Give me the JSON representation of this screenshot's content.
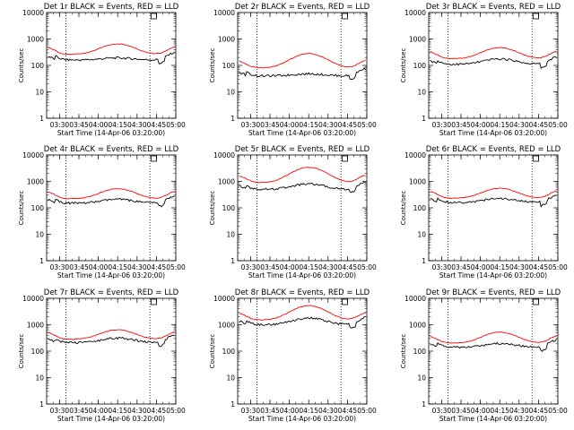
{
  "chart_data": [
    {
      "type": "line",
      "title": "Det 1r BLACK = Events, RED = LLD",
      "xlabel": "Start Time (14-Apr-06 03:20:00)",
      "ylabel": "Counts/sec",
      "x_tick_labels": [
        "03:30",
        "03:45",
        "04:00",
        "04:15",
        "04:30",
        "04:45",
        "05:00"
      ],
      "y_tick_labels": [
        "1",
        "10",
        "100",
        "1000",
        "10000"
      ],
      "ylim": [
        1,
        10000
      ],
      "y_scale": "log",
      "dotted_lines": [
        "03:35",
        "04:40"
      ],
      "marker_x": "04:43",
      "series": [
        {
          "name": "Events",
          "color": "#000000",
          "base": "160",
          "amp": 1.2
        },
        {
          "name": "LLD",
          "color": "#ff0000",
          "base": "260",
          "amp": 2.5
        }
      ]
    },
    {
      "type": "line",
      "title": "Det 2r BLACK = Events, RED = LLD",
      "xlabel": "Start Time (14-Apr-06 03:20:00)",
      "ylabel": "Counts/sec",
      "x_tick_labels": [
        "03:30",
        "03:45",
        "04:00",
        "04:15",
        "04:30",
        "04:45",
        "05:00"
      ],
      "y_tick_labels": [
        "1",
        "10",
        "100",
        "1000",
        "10000"
      ],
      "ylim": [
        1,
        10000
      ],
      "y_scale": "log",
      "dotted_lines": [
        "03:35",
        "04:40"
      ],
      "marker_x": "04:43",
      "series": [
        {
          "name": "Events",
          "color": "#000000",
          "base": "40",
          "amp": 1.2
        },
        {
          "name": "LLD",
          "color": "#ff0000",
          "base": "80",
          "amp": 3.5
        }
      ]
    },
    {
      "type": "line",
      "title": "Det 3r BLACK = Events, RED = LLD",
      "xlabel": "Start Time (14-Apr-06 03:20:00)",
      "ylabel": "Counts/sec",
      "x_tick_labels": [
        "03:30",
        "03:45",
        "04:00",
        "04:15",
        "04:30",
        "04:45",
        "05:00"
      ],
      "y_tick_labels": [
        "1",
        "10",
        "100",
        "1000",
        "10000"
      ],
      "ylim": [
        1,
        10000
      ],
      "y_scale": "log",
      "dotted_lines": [
        "03:35",
        "04:40"
      ],
      "marker_x": "04:43",
      "series": [
        {
          "name": "Events",
          "color": "#000000",
          "base": "110",
          "amp": 1.6
        },
        {
          "name": "LLD",
          "color": "#ff0000",
          "base": "180",
          "amp": 2.6
        }
      ]
    },
    {
      "type": "line",
      "title": "Det 4r BLACK = Events, RED = LLD",
      "xlabel": "Start Time (14-Apr-06 03:20:00)",
      "ylabel": "Counts/sec",
      "x_tick_labels": [
        "03:30",
        "03:45",
        "04:00",
        "04:15",
        "04:30",
        "04:45",
        "05:00"
      ],
      "y_tick_labels": [
        "1",
        "10",
        "100",
        "1000",
        "10000"
      ],
      "ylim": [
        1,
        10000
      ],
      "y_scale": "log",
      "dotted_lines": [
        "03:35",
        "04:40"
      ],
      "marker_x": "04:43",
      "series": [
        {
          "name": "Events",
          "color": "#000000",
          "base": "150",
          "amp": 1.4
        },
        {
          "name": "LLD",
          "color": "#ff0000",
          "base": "220",
          "amp": 2.4
        }
      ]
    },
    {
      "type": "line",
      "title": "Det 5r BLACK = Events, RED = LLD",
      "xlabel": "Start Time (14-Apr-06 03:20:00)",
      "ylabel": "Counts/sec",
      "x_tick_labels": [
        "03:30",
        "03:45",
        "04:00",
        "04:15",
        "04:30",
        "04:45",
        "05:00"
      ],
      "y_tick_labels": [
        "1",
        "10",
        "100",
        "1000",
        "10000"
      ],
      "ylim": [
        1,
        10000
      ],
      "y_scale": "log",
      "dotted_lines": [
        "03:35",
        "04:40"
      ],
      "marker_x": "04:43",
      "series": [
        {
          "name": "Events",
          "color": "#000000",
          "base": "500",
          "amp": 1.6
        },
        {
          "name": "LLD",
          "color": "#ff0000",
          "base": "900",
          "amp": 3.8
        }
      ]
    },
    {
      "type": "line",
      "title": "Det 6r BLACK = Events, RED = LLD",
      "xlabel": "Start Time (14-Apr-06 03:20:00)",
      "ylabel": "Counts/sec",
      "x_tick_labels": [
        "03:30",
        "03:45",
        "04:00",
        "04:15",
        "04:30",
        "04:45",
        "05:00"
      ],
      "y_tick_labels": [
        "1",
        "10",
        "100",
        "1000",
        "10000"
      ],
      "ylim": [
        1,
        10000
      ],
      "y_scale": "log",
      "dotted_lines": [
        "03:35",
        "04:40"
      ],
      "marker_x": "04:43",
      "series": [
        {
          "name": "Events",
          "color": "#000000",
          "base": "160",
          "amp": 1.4
        },
        {
          "name": "LLD",
          "color": "#ff0000",
          "base": "230",
          "amp": 2.4
        }
      ]
    },
    {
      "type": "line",
      "title": "Det 7r BLACK = Events, RED = LLD",
      "xlabel": "Start Time (14-Apr-06 03:20:00)",
      "ylabel": "Counts/sec",
      "x_tick_labels": [
        "03:30",
        "03:45",
        "04:00",
        "04:15",
        "04:30",
        "04:45",
        "05:00"
      ],
      "y_tick_labels": [
        "1",
        "10",
        "100",
        "1000",
        "10000"
      ],
      "ylim": [
        1,
        10000
      ],
      "y_scale": "log",
      "dotted_lines": [
        "03:35",
        "04:40"
      ],
      "marker_x": "04:43",
      "series": [
        {
          "name": "Events",
          "color": "#000000",
          "base": "210",
          "amp": 1.5
        },
        {
          "name": "LLD",
          "color": "#ff0000",
          "base": "280",
          "amp": 2.3
        }
      ]
    },
    {
      "type": "line",
      "title": "Det 8r BLACK = Events, RED = LLD",
      "xlabel": "Start Time (14-Apr-06 03:20:00)",
      "ylabel": "Counts/sec",
      "x_tick_labels": [
        "03:30",
        "03:45",
        "04:00",
        "04:15",
        "04:30",
        "04:45",
        "05:00"
      ],
      "y_tick_labels": [
        "1",
        "10",
        "100",
        "1000",
        "10000"
      ],
      "ylim": [
        1,
        10000
      ],
      "y_scale": "log",
      "dotted_lines": [
        "03:35",
        "04:40"
      ],
      "marker_x": "04:43",
      "series": [
        {
          "name": "Events",
          "color": "#000000",
          "base": "1000",
          "amp": 1.8
        },
        {
          "name": "LLD",
          "color": "#ff0000",
          "base": "1500",
          "amp": 3.5
        }
      ]
    },
    {
      "type": "line",
      "title": "Det 9r BLACK = Events, RED = LLD",
      "xlabel": "Start Time (14-Apr-06 03:20:00)",
      "ylabel": "Counts/sec",
      "x_tick_labels": [
        "03:30",
        "03:45",
        "04:00",
        "04:15",
        "04:30",
        "04:45",
        "05:00"
      ],
      "y_tick_labels": [
        "1",
        "10",
        "100",
        "1000",
        "10000"
      ],
      "ylim": [
        1,
        10000
      ],
      "y_scale": "log",
      "dotted_lines": [
        "03:35",
        "04:40"
      ],
      "marker_x": "04:43",
      "series": [
        {
          "name": "Events",
          "color": "#000000",
          "base": "140",
          "amp": 1.4
        },
        {
          "name": "LLD",
          "color": "#ff0000",
          "base": "200",
          "amp": 2.6
        }
      ]
    }
  ]
}
